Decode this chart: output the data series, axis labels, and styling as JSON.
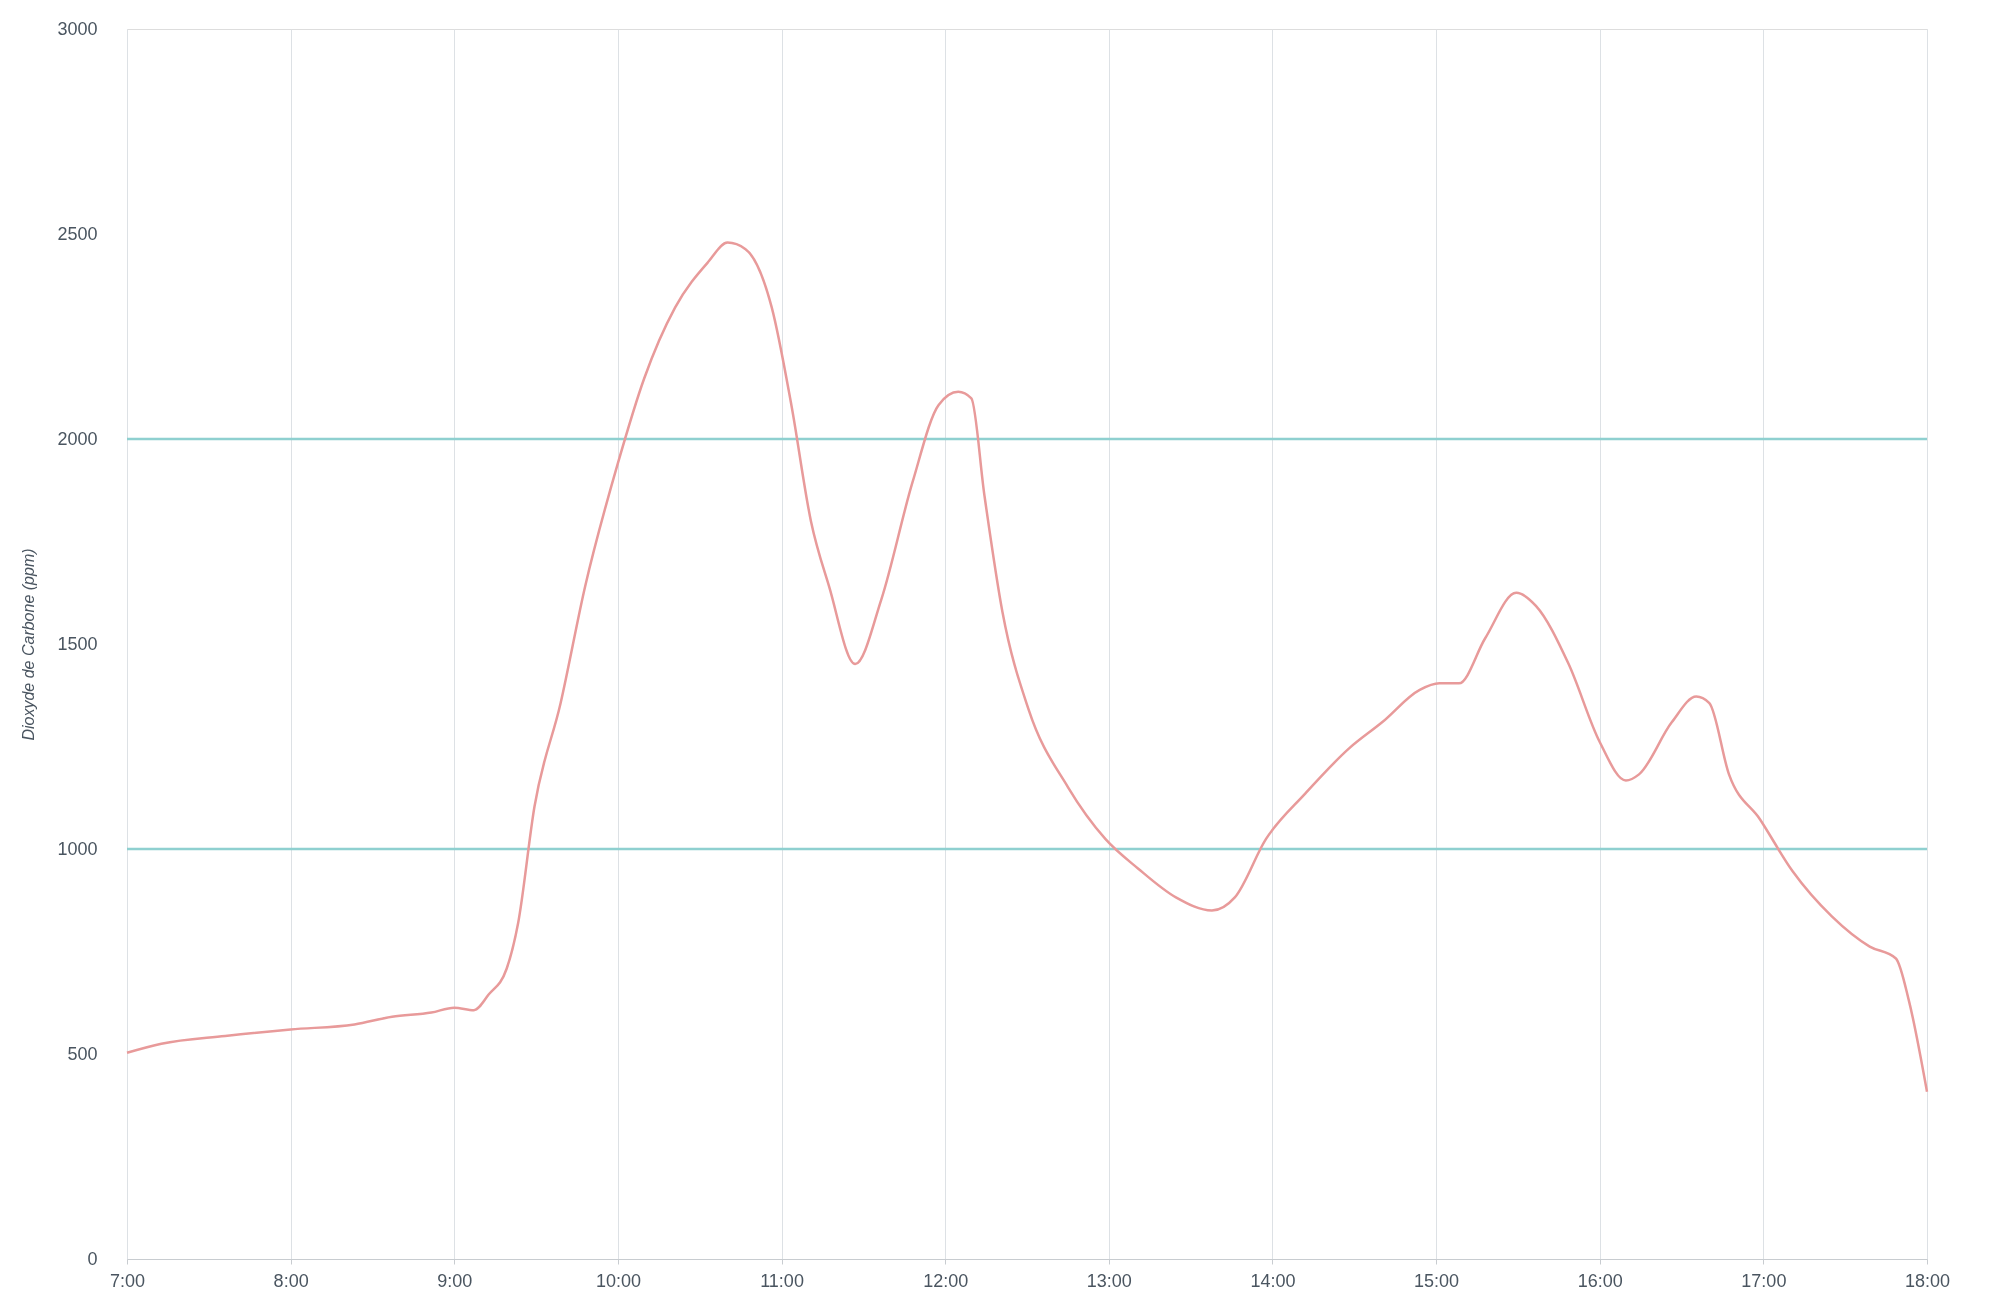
{
  "chart_data": {
    "type": "line",
    "ylabel": "Dioxyde de Carbone (ppm)",
    "x": [
      7.0,
      7.21,
      7.6,
      8.0,
      8.39,
      8.62,
      8.86,
      9.0,
      9.12,
      9.21,
      9.32,
      9.39,
      9.49,
      9.65,
      9.8,
      10.0,
      10.16,
      10.35,
      10.55,
      10.67,
      10.78,
      10.94,
      11.06,
      11.18,
      11.29,
      11.45,
      11.61,
      11.8,
      11.96,
      12.08,
      12.16,
      12.24,
      12.35,
      12.51,
      12.75,
      12.98,
      13.18,
      13.41,
      13.63,
      13.77,
      13.96,
      14.2,
      14.47,
      14.67,
      14.9,
      15.02,
      15.14,
      15.3,
      15.49,
      15.61,
      15.81,
      16.0,
      16.16,
      16.24,
      16.44,
      16.59,
      16.67,
      16.79,
      16.98,
      17.18,
      17.42,
      17.65,
      17.81,
      17.89,
      18.0
    ],
    "series": [
      {
        "color": "#e89a9a",
        "values": [
          503,
          525,
          544,
          560,
          572,
          591,
          601,
          613,
          607,
          645,
          708,
          819,
          1103,
          1356,
          1641,
          1941,
          2147,
          2321,
          2431,
          2479,
          2463,
          2321,
          2083,
          1799,
          1641,
          1451,
          1609,
          1894,
          2083,
          2115,
          2099,
          1862,
          1578,
          1340,
          1151,
          1024,
          952,
          882,
          850,
          882,
          1024,
          1135,
          1246,
          1309,
          1388,
          1404,
          1404,
          1514,
          1625,
          1593,
          1451,
          1261,
          1167,
          1182,
          1309,
          1372,
          1356,
          1182,
          1072,
          945,
          835,
          762,
          733,
          629,
          408
        ]
      }
    ],
    "xlim": [
      7,
      18
    ],
    "xticks": [
      {
        "value": 7,
        "label": "7:00"
      },
      {
        "value": 8,
        "label": "8:00"
      },
      {
        "value": 9,
        "label": "9:00"
      },
      {
        "value": 10,
        "label": "10:00"
      },
      {
        "value": 11,
        "label": "11:00"
      },
      {
        "value": 12,
        "label": "12:00"
      },
      {
        "value": 13,
        "label": "13:00"
      },
      {
        "value": 14,
        "label": "14:00"
      },
      {
        "value": 15,
        "label": "15:00"
      },
      {
        "value": 16,
        "label": "16:00"
      },
      {
        "value": 17,
        "label": "17:00"
      },
      {
        "value": 18,
        "label": "18:00"
      }
    ],
    "ylim": [
      0,
      3000
    ],
    "yticks": [
      0,
      500,
      1000,
      1500,
      2000,
      2500,
      3000
    ],
    "ref_lines": [
      {
        "axis": "y",
        "value": 1000,
        "color": "#8fd0d0"
      },
      {
        "axis": "y",
        "value": 2000,
        "color": "#8fd0d0"
      }
    ],
    "grid": "x"
  }
}
